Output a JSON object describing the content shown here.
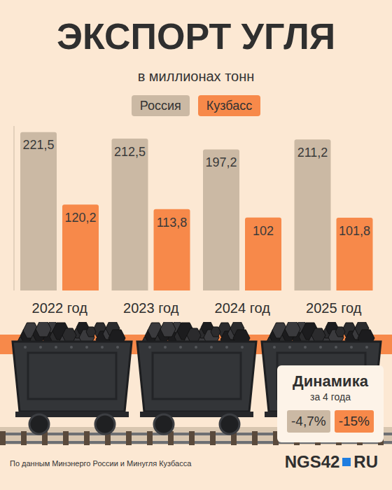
{
  "chart_data": {
    "type": "bar",
    "title": "ЭКСПОРТ УГЛЯ",
    "subtitle": "в миллионах тонн",
    "categories": [
      "2022 год",
      "2023 год",
      "2024 год",
      "2025 год"
    ],
    "series": [
      {
        "name": "Россия",
        "color": "#cbb9a4",
        "values": [
          221.5,
          212.5,
          197.2,
          211.2
        ],
        "value_labels": [
          "221,5",
          "212,5",
          "197,2",
          "211,2"
        ]
      },
      {
        "name": "Кузбасс",
        "color": "#f7894a",
        "values": [
          120.2,
          113.8,
          102,
          101.8
        ],
        "value_labels": [
          "120,2",
          "113,8",
          "102",
          "101,8"
        ]
      }
    ],
    "ylim": [
      0,
      230
    ],
    "grid": false,
    "legend": "top",
    "data_labels": true,
    "tick_labels": "x",
    "annotations": {
      "dynamics": {
        "title": "Динамика",
        "subtitle": "за 4 года",
        "items": [
          {
            "value": -4.7,
            "label": "-4,7%"
          },
          {
            "value": -15,
            "label": "-15%"
          }
        ]
      },
      "source": "По данным Минэнерго России и Минугля Кузбасса",
      "logo": {
        "brand": "NGS42",
        "domain": "RU"
      }
    }
  }
}
